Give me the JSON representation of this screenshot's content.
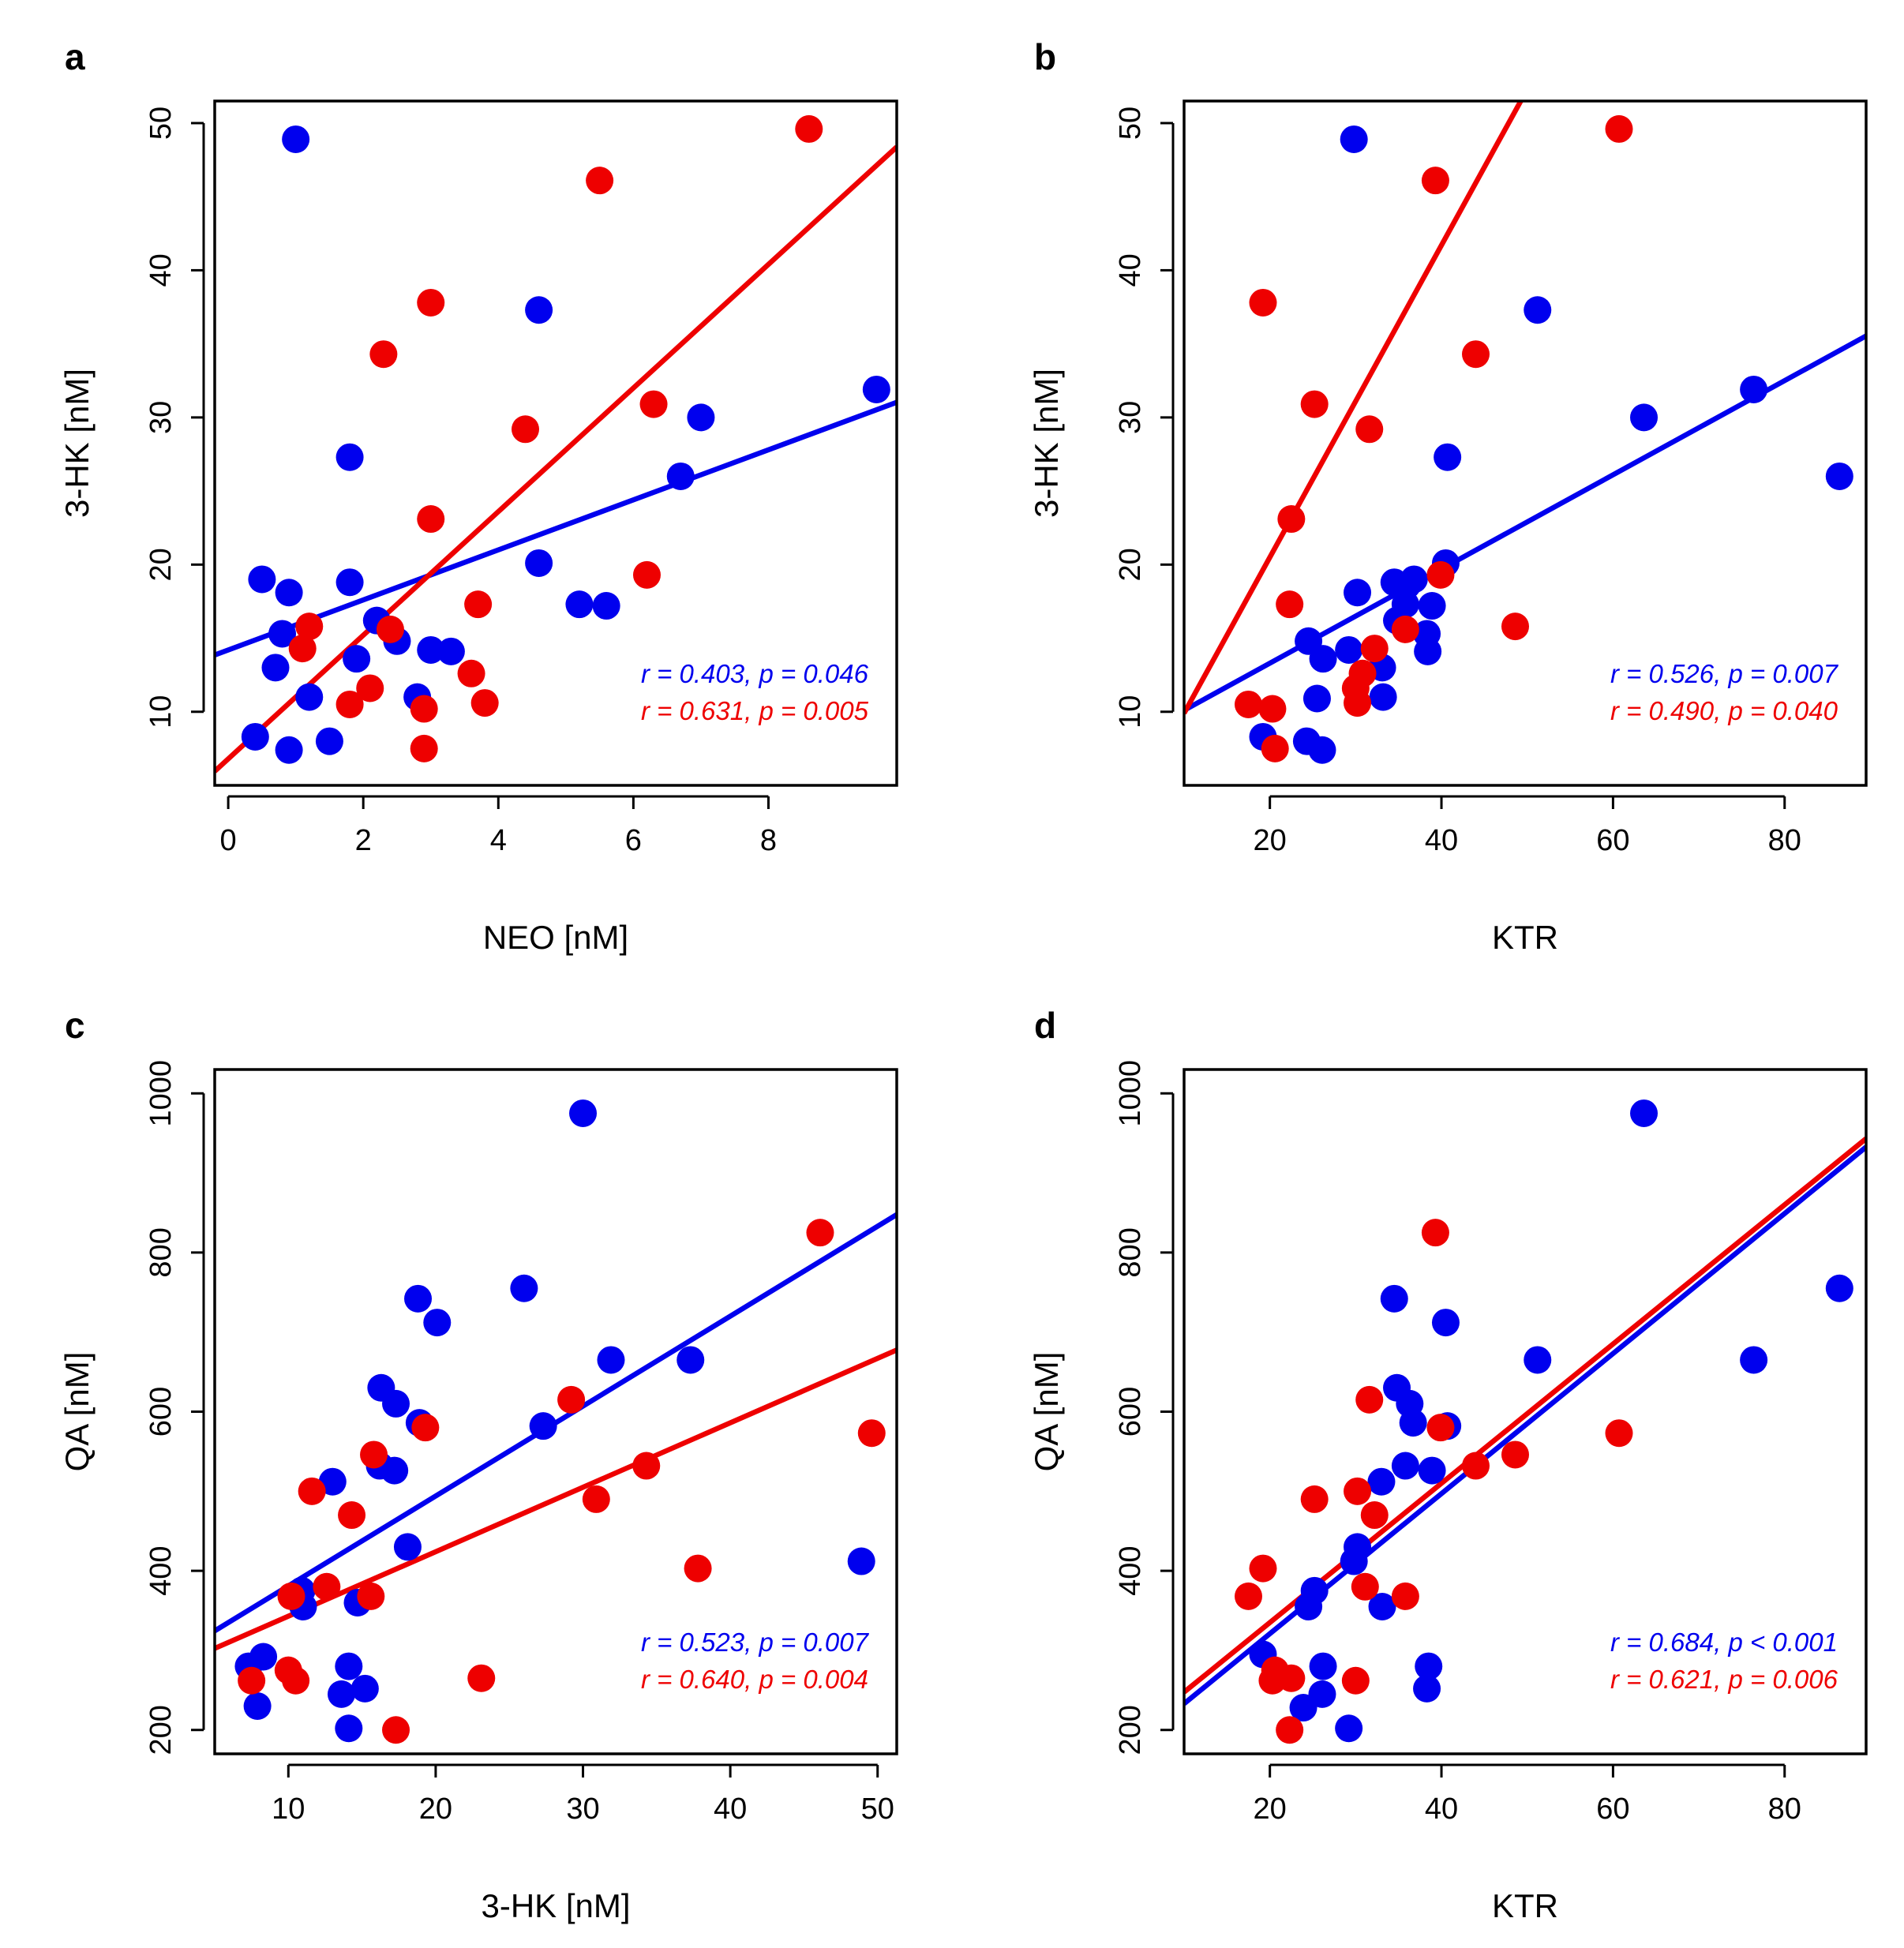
{
  "colors": {
    "group1": "#0000ee",
    "group2": "#ee0000"
  },
  "chart_data": [
    {
      "type": "scatter",
      "panel": "a",
      "xlabel": "NEO [nM]",
      "ylabel": "3-HK [nM]",
      "xlim": [
        -0.2,
        9.9
      ],
      "ylim": [
        5,
        51.5
      ],
      "xticks": [
        0,
        2,
        4,
        6,
        8
      ],
      "yticks": [
        10,
        20,
        30,
        40,
        50
      ],
      "series": [
        {
          "color": "#0000ee",
          "points": [
            [
              0.4,
              8.3
            ],
            [
              0.5,
              19
            ],
            [
              0.7,
              13
            ],
            [
              0.8,
              15.3
            ],
            [
              0.9,
              18.1
            ],
            [
              0.9,
              7.4
            ],
            [
              1.0,
              48.9
            ],
            [
              1.2,
              11
            ],
            [
              1.5,
              8
            ],
            [
              1.8,
              27.3
            ],
            [
              1.8,
              18.8
            ],
            [
              1.9,
              13.6
            ],
            [
              2.2,
              16.2
            ],
            [
              2.5,
              14.8
            ],
            [
              2.8,
              11
            ],
            [
              3.0,
              14.2
            ],
            [
              3.3,
              14.1
            ],
            [
              4.6,
              37.3
            ],
            [
              4.6,
              20.1
            ],
            [
              5.2,
              17.3
            ],
            [
              5.6,
              17.2
            ],
            [
              6.7,
              26
            ],
            [
              7.0,
              30
            ],
            [
              9.6,
              31.9
            ]
          ],
          "fit": {
            "intercept": 14.2,
            "slope": 1.7
          },
          "annotation": "r = 0.403, p = 0.046"
        },
        {
          "color": "#ee0000",
          "points": [
            [
              1.1,
              14.3
            ],
            [
              1.2,
              15.8
            ],
            [
              1.8,
              10.5
            ],
            [
              2.1,
              11.6
            ],
            [
              2.3,
              34.3
            ],
            [
              2.4,
              15.6
            ],
            [
              2.9,
              7.5
            ],
            [
              2.9,
              10.2
            ],
            [
              3.0,
              37.8
            ],
            [
              3.0,
              23.1
            ],
            [
              3.6,
              12.6
            ],
            [
              3.7,
              17.3
            ],
            [
              3.8,
              10.6
            ],
            [
              4.4,
              29.2
            ],
            [
              5.5,
              46.1
            ],
            [
              6.2,
              19.3
            ],
            [
              6.3,
              30.9
            ],
            [
              8.6,
              49.6
            ]
          ],
          "fit": {
            "intercept": 6.8,
            "slope": 4.2
          },
          "annotation": "r = 0.631, p = 0.005"
        }
      ]
    },
    {
      "type": "scatter",
      "panel": "b",
      "xlabel": "KTR",
      "ylabel": "3-HK [nM]",
      "xlim": [
        10,
        89.5
      ],
      "ylim": [
        5,
        51.5
      ],
      "xticks": [
        20,
        40,
        60,
        80
      ],
      "yticks": [
        10,
        20,
        30,
        40,
        50
      ],
      "series": [
        {
          "color": "#0000ee",
          "points": [
            [
              19.2,
              8.3
            ],
            [
              24.3,
              8
            ],
            [
              24.5,
              14.8
            ],
            [
              25.5,
              10.9
            ],
            [
              26.1,
              7.4
            ],
            [
              26.2,
              13.6
            ],
            [
              29.2,
              14.2
            ],
            [
              29.8,
              48.9
            ],
            [
              30.2,
              18.1
            ],
            [
              33.1,
              13
            ],
            [
              33.2,
              11
            ],
            [
              34.5,
              18.8
            ],
            [
              34.8,
              16.2
            ],
            [
              35.8,
              17.3
            ],
            [
              36.0,
              18.6
            ],
            [
              36.8,
              19
            ],
            [
              38.3,
              15.3
            ],
            [
              38.4,
              14.1
            ],
            [
              38.9,
              17.2
            ],
            [
              40.5,
              20.1
            ],
            [
              40.7,
              27.3
            ],
            [
              51.2,
              37.3
            ],
            [
              63.6,
              30
            ],
            [
              76.4,
              31.9
            ],
            [
              86.4,
              26
            ]
          ],
          "fit": {
            "intercept": 6.9,
            "slope": 0.32
          },
          "annotation": "r = 0.526, p = 0.007"
        },
        {
          "color": "#ee0000",
          "points": [
            [
              17.5,
              10.5
            ],
            [
              19.2,
              37.8
            ],
            [
              20.3,
              10.2
            ],
            [
              20.6,
              7.5
            ],
            [
              22.3,
              17.3
            ],
            [
              22.5,
              23.1
            ],
            [
              25.2,
              30.9
            ],
            [
              30.0,
              11.6
            ],
            [
              30.2,
              10.6
            ],
            [
              30.8,
              12.6
            ],
            [
              31.6,
              29.2
            ],
            [
              32.2,
              14.3
            ],
            [
              35.8,
              15.6
            ],
            [
              39.3,
              46.1
            ],
            [
              39.9,
              19.3
            ],
            [
              44.0,
              34.3
            ],
            [
              48.6,
              15.8
            ],
            [
              60.7,
              49.6
            ]
          ],
          "fit": {
            "intercept": -0.7,
            "slope": 1.06
          },
          "annotation": "r = 0.490, p = 0.040"
        }
      ]
    },
    {
      "type": "scatter",
      "panel": "c",
      "xlabel": "3-HK [nM]",
      "ylabel": "QA [nM]",
      "xlim": [
        5,
        51.3
      ],
      "ylim": [
        170,
        1030
      ],
      "xticks": [
        10,
        20,
        30,
        40,
        50
      ],
      "yticks": [
        200,
        400,
        600,
        800,
        1000
      ],
      "series": [
        {
          "color": "#0000ee",
          "points": [
            [
              7.3,
              280
            ],
            [
              7.9,
              230
            ],
            [
              8.3,
              292
            ],
            [
              10.9,
              375
            ],
            [
              11.0,
              355
            ],
            [
              13.0,
              512
            ],
            [
              13.6,
              245
            ],
            [
              14.1,
              202
            ],
            [
              14.1,
              280
            ],
            [
              14.7,
              360
            ],
            [
              15.2,
              252
            ],
            [
              16.2,
              532
            ],
            [
              16.3,
              630
            ],
            [
              17.2,
              526
            ],
            [
              17.3,
              610
            ],
            [
              18.1,
              430
            ],
            [
              18.8,
              742
            ],
            [
              18.9,
              586
            ],
            [
              20.1,
              712
            ],
            [
              26.0,
              755
            ],
            [
              27.3,
              582
            ],
            [
              30.0,
              975
            ],
            [
              31.9,
              665
            ],
            [
              37.3,
              665
            ],
            [
              48.9,
              412
            ]
          ],
          "fit": {
            "intercept": 268,
            "slope": 11.3
          },
          "annotation": "r = 0.523, p = 0.007"
        },
        {
          "color": "#ee0000",
          "points": [
            [
              7.5,
              262
            ],
            [
              10.0,
              275
            ],
            [
              10.2,
              368
            ],
            [
              10.5,
              262
            ],
            [
              11.6,
              500
            ],
            [
              12.6,
              380
            ],
            [
              14.3,
              470
            ],
            [
              15.6,
              368
            ],
            [
              15.8,
              546
            ],
            [
              17.3,
              200
            ],
            [
              19.3,
              580
            ],
            [
              23.1,
              265
            ],
            [
              29.2,
              615
            ],
            [
              30.9,
              490
            ],
            [
              34.3,
              532
            ],
            [
              37.8,
              403
            ],
            [
              46.1,
              825
            ],
            [
              49.6,
              573
            ]
          ],
          "fit": {
            "intercept": 262,
            "slope": 8.1
          },
          "annotation": "r = 0.640, p = 0.004"
        }
      ]
    },
    {
      "type": "scatter",
      "panel": "d",
      "xlabel": "KTR",
      "ylabel": "QA [nM]",
      "xlim": [
        10,
        89.5
      ],
      "ylim": [
        170,
        1030
      ],
      "xticks": [
        20,
        40,
        60,
        80
      ],
      "yticks": [
        200,
        400,
        600,
        800,
        1000
      ],
      "series": [
        {
          "color": "#0000ee",
          "points": [
            [
              19.2,
              295
            ],
            [
              23.9,
              228
            ],
            [
              24.5,
              355
            ],
            [
              25.2,
              375
            ],
            [
              26.1,
              245
            ],
            [
              26.2,
              280
            ],
            [
              29.2,
              202
            ],
            [
              29.8,
              412
            ],
            [
              30.2,
              430
            ],
            [
              33.0,
              512
            ],
            [
              33.1,
              355
            ],
            [
              34.5,
              742
            ],
            [
              34.8,
              630
            ],
            [
              35.8,
              532
            ],
            [
              36.3,
              610
            ],
            [
              36.7,
              586
            ],
            [
              38.3,
              252
            ],
            [
              38.5,
              280
            ],
            [
              38.9,
              526
            ],
            [
              40.5,
              712
            ],
            [
              40.7,
              582
            ],
            [
              51.2,
              665
            ],
            [
              63.6,
              975
            ],
            [
              76.4,
              665
            ],
            [
              86.4,
              755
            ]
          ],
          "fit": {
            "intercept": 145,
            "slope": 8.8
          },
          "annotation": "r = 0.684, p < 0.001"
        },
        {
          "color": "#ee0000",
          "points": [
            [
              17.5,
              368
            ],
            [
              19.2,
              403
            ],
            [
              20.3,
              262
            ],
            [
              20.6,
              275
            ],
            [
              22.3,
              200
            ],
            [
              22.5,
              265
            ],
            [
              25.2,
              490
            ],
            [
              30.0,
              262
            ],
            [
              30.2,
              500
            ],
            [
              31.1,
              380
            ],
            [
              31.6,
              615
            ],
            [
              32.2,
              470
            ],
            [
              35.8,
              368
            ],
            [
              39.3,
              825
            ],
            [
              39.9,
              580
            ],
            [
              44.0,
              532
            ],
            [
              48.6,
              546
            ],
            [
              60.7,
              573
            ]
          ],
          "fit": {
            "intercept": 160,
            "slope": 8.75
          },
          "annotation": "r = 0.621, p = 0.006"
        }
      ]
    }
  ]
}
